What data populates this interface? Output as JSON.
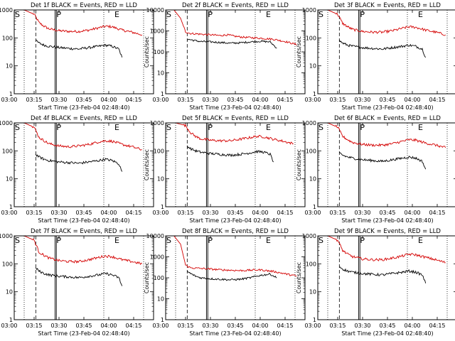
{
  "colors": {
    "events": "#000000",
    "lld": "#d40000",
    "axes": "#000000",
    "background": "#ffffff"
  },
  "chart_data": {
    "type": "line",
    "grid": false,
    "xlim": [
      "03:03",
      "04:27"
    ],
    "ylim": [
      1,
      1000
    ],
    "yscale": "log",
    "xticks": [
      "03:00",
      "03:15",
      "03:30",
      "03:45",
      "04:00",
      "04:15"
    ],
    "yticks": [
      "1",
      "10",
      "100",
      "1000"
    ],
    "ylabel": "Counts/sec",
    "xlabel": "Start Time (23-Feb-04 02:48:40)",
    "markers": [
      {
        "label": "S",
        "time": "03:03"
      },
      {
        "label": "P",
        "time": "03:28"
      },
      {
        "label": "E",
        "time": "04:03"
      }
    ],
    "panels": [
      {
        "title": "Det 1f BLACK = Events, RED = LLD",
        "ylim": [
          1,
          1000
        ],
        "yticks": [
          "1",
          "10",
          "100",
          "1000"
        ],
        "series": [
          {
            "name": "RED",
            "color": "#d40000",
            "x": [
              "03:03",
              "03:09",
              "03:15",
              "03:18",
              "03:21",
              "03:24",
              "03:30",
              "03:36",
              "03:42",
              "03:48",
              "03:54",
              "03:58",
              "04:02",
              "04:08",
              "04:14",
              "04:20"
            ],
            "values": [
              1000,
              1000,
              700,
              350,
              260,
              210,
              180,
              170,
              170,
              190,
              230,
              260,
              250,
              190,
              160,
              130
            ]
          },
          {
            "name": "BLACK",
            "color": "#000000",
            "x": [
              "03:16",
              "03:18",
              "03:21",
              "03:24",
              "03:30",
              "03:36",
              "03:42",
              "03:48",
              "03:54",
              "03:58",
              "04:02",
              "04:06",
              "04:08"
            ],
            "values": [
              80,
              65,
              55,
              50,
              45,
              42,
              40,
              45,
              50,
              55,
              50,
              40,
              20
            ]
          }
        ]
      },
      {
        "title": "Det 2f BLACK = Events, RED = LLD",
        "ylim": [
          1,
          10000
        ],
        "yticks": [
          "1",
          "10",
          "100",
          "1000",
          "10000"
        ],
        "series": [
          {
            "name": "RED",
            "color": "#d40000",
            "x": [
              "03:03",
              "03:08",
              "03:12",
              "03:15",
              "03:18",
              "03:24",
              "03:30",
              "03:36",
              "03:40",
              "03:45",
              "03:50",
              "04:00",
              "04:08",
              "04:16",
              "04:22"
            ],
            "values": [
              10000,
              10000,
              4000,
              900,
              750,
              700,
              650,
              600,
              650,
              550,
              500,
              450,
              400,
              300,
              220
            ]
          },
          {
            "name": "BLACK",
            "color": "#000000",
            "x": [
              "03:16",
              "03:18",
              "03:21",
              "03:24",
              "03:30",
              "03:36",
              "03:42",
              "03:48",
              "03:54",
              "04:00",
              "04:06",
              "04:10"
            ],
            "values": [
              400,
              380,
              340,
              310,
              300,
              280,
              260,
              270,
              300,
              320,
              300,
              150
            ]
          }
        ]
      },
      {
        "title": "Det 3f BLACK = Events, RED = LLD",
        "ylim": [
          1,
          1000
        ],
        "yticks": [
          "1",
          "10",
          "100",
          "1000"
        ],
        "series": [
          {
            "name": "RED",
            "color": "#d40000",
            "x": [
              "03:03",
              "03:09",
              "03:15",
              "03:18",
              "03:21",
              "03:24",
              "03:30",
              "03:36",
              "03:42",
              "03:48",
              "03:54",
              "03:58",
              "04:02",
              "04:08",
              "04:14",
              "04:20"
            ],
            "values": [
              1000,
              1000,
              700,
              330,
              250,
              200,
              170,
              160,
              160,
              180,
              220,
              250,
              240,
              190,
              160,
              130
            ]
          },
          {
            "name": "BLACK",
            "color": "#000000",
            "x": [
              "03:16",
              "03:18",
              "03:21",
              "03:24",
              "03:30",
              "03:36",
              "03:42",
              "03:48",
              "03:54",
              "03:58",
              "04:02",
              "04:06",
              "04:08"
            ],
            "values": [
              80,
              65,
              55,
              50,
              45,
              42,
              40,
              45,
              50,
              55,
              50,
              40,
              20
            ]
          }
        ]
      },
      {
        "title": "Det 4f BLACK = Events, RED = LLD",
        "ylim": [
          1,
          1000
        ],
        "yticks": [
          "1",
          "10",
          "100",
          "1000"
        ],
        "series": [
          {
            "name": "RED",
            "color": "#d40000",
            "x": [
              "03:03",
              "03:09",
              "03:15",
              "03:18",
              "03:21",
              "03:24",
              "03:30",
              "03:36",
              "03:42",
              "03:48",
              "03:54",
              "03:58",
              "04:02",
              "04:08",
              "04:14",
              "04:20"
            ],
            "values": [
              1000,
              1000,
              700,
              300,
              230,
              180,
              150,
              140,
              150,
              170,
              210,
              230,
              220,
              170,
              140,
              110
            ]
          },
          {
            "name": "BLACK",
            "color": "#000000",
            "x": [
              "03:16",
              "03:18",
              "03:21",
              "03:24",
              "03:30",
              "03:36",
              "03:42",
              "03:48",
              "03:54",
              "03:58",
              "04:02",
              "04:06",
              "04:08"
            ],
            "values": [
              75,
              60,
              50,
              45,
              40,
              38,
              36,
              40,
              45,
              50,
              45,
              35,
              18
            ]
          }
        ]
      },
      {
        "title": "Det 5f BLACK = Events, RED = LLD",
        "ylim": [
          1,
          1000
        ],
        "yticks": [
          "1",
          "10",
          "100",
          "1000"
        ],
        "series": [
          {
            "name": "RED",
            "color": "#d40000",
            "x": [
              "03:03",
              "03:09",
              "03:15",
              "03:18",
              "03:21",
              "03:24",
              "03:30",
              "03:36",
              "03:42",
              "03:48",
              "03:54",
              "03:58",
              "04:02",
              "04:08",
              "04:14",
              "04:20"
            ],
            "values": [
              1000,
              1000,
              800,
              450,
              330,
              270,
              240,
              230,
              230,
              260,
              300,
              330,
              320,
              260,
              220,
              180
            ]
          },
          {
            "name": "BLACK",
            "color": "#000000",
            "x": [
              "03:16",
              "03:18",
              "03:21",
              "03:24",
              "03:30",
              "03:36",
              "03:42",
              "03:48",
              "03:54",
              "03:58",
              "04:02",
              "04:06",
              "04:08"
            ],
            "values": [
              150,
              120,
              100,
              90,
              80,
              75,
              70,
              75,
              85,
              95,
              90,
              75,
              40
            ]
          }
        ]
      },
      {
        "title": "Det 6f BLACK = Events, RED = LLD",
        "ylim": [
          1,
          1000
        ],
        "yticks": [
          "1",
          "10",
          "100",
          "1000"
        ],
        "series": [
          {
            "name": "RED",
            "color": "#d40000",
            "x": [
              "03:03",
              "03:09",
              "03:15",
              "03:18",
              "03:21",
              "03:24",
              "03:30",
              "03:36",
              "03:42",
              "03:48",
              "03:54",
              "03:58",
              "04:02",
              "04:08",
              "04:14",
              "04:20"
            ],
            "values": [
              1000,
              1000,
              700,
              330,
              250,
              200,
              170,
              160,
              160,
              180,
              220,
              250,
              240,
              190,
              160,
              130
            ]
          },
          {
            "name": "BLACK",
            "color": "#000000",
            "x": [
              "03:16",
              "03:18",
              "03:21",
              "03:24",
              "03:30",
              "03:36",
              "03:42",
              "03:48",
              "03:54",
              "03:58",
              "04:02",
              "04:06",
              "04:08"
            ],
            "values": [
              85,
              70,
              60,
              55,
              48,
              45,
              42,
              48,
              55,
              60,
              55,
              42,
              22
            ]
          }
        ]
      },
      {
        "title": "Det 7f BLACK = Events, RED = LLD",
        "ylim": [
          1,
          1000
        ],
        "yticks": [
          "1",
          "10",
          "100",
          "1000"
        ],
        "series": [
          {
            "name": "RED",
            "color": "#d40000",
            "x": [
              "03:03",
              "03:09",
              "03:15",
              "03:18",
              "03:21",
              "03:24",
              "03:30",
              "03:36",
              "03:42",
              "03:48",
              "03:54",
              "03:58",
              "04:02",
              "04:08",
              "04:14",
              "04:20"
            ],
            "values": [
              1000,
              1000,
              700,
              260,
              200,
              160,
              130,
              120,
              120,
              140,
              170,
              190,
              180,
              140,
              120,
              100
            ]
          },
          {
            "name": "BLACK",
            "color": "#000000",
            "x": [
              "03:16",
              "03:18",
              "03:21",
              "03:24",
              "03:30",
              "03:36",
              "03:42",
              "03:48",
              "03:54",
              "03:58",
              "04:02",
              "04:06",
              "04:08"
            ],
            "values": [
              70,
              55,
              45,
              40,
              36,
              34,
              32,
              36,
              40,
              45,
              40,
              32,
              16
            ]
          }
        ]
      },
      {
        "title": "Det 8f BLACK = Events, RED = LLD",
        "ylim": [
          1,
          10000
        ],
        "yticks": [
          "1",
          "10",
          "100",
          "1000",
          "10000"
        ],
        "series": [
          {
            "name": "RED",
            "color": "#d40000",
            "x": [
              "03:03",
              "03:08",
              "03:12",
              "03:15",
              "03:18",
              "03:24",
              "03:30",
              "03:36",
              "03:42",
              "03:48",
              "03:54",
              "04:00",
              "04:08",
              "04:16",
              "04:22"
            ],
            "values": [
              10000,
              10000,
              4000,
              400,
              300,
              280,
              260,
              240,
              230,
              220,
              230,
              240,
              200,
              150,
              120
            ]
          },
          {
            "name": "BLACK",
            "color": "#000000",
            "x": [
              "03:16",
              "03:18",
              "03:21",
              "03:24",
              "03:30",
              "03:36",
              "03:42",
              "03:48",
              "03:54",
              "04:00",
              "04:06",
              "04:10"
            ],
            "values": [
              200,
              160,
              120,
              100,
              90,
              85,
              80,
              85,
              100,
              130,
              150,
              100
            ]
          }
        ]
      },
      {
        "title": "Det 9f BLACK = Events, RED = LLD",
        "ylim": [
          1,
          1000
        ],
        "yticks": [
          "1",
          "10",
          "100",
          "1000"
        ],
        "series": [
          {
            "name": "RED",
            "color": "#d40000",
            "x": [
              "03:03",
              "03:09",
              "03:15",
              "03:18",
              "03:21",
              "03:24",
              "03:30",
              "03:36",
              "03:42",
              "03:48",
              "03:54",
              "03:58",
              "04:02",
              "04:08",
              "04:14",
              "04:20"
            ],
            "values": [
              1000,
              1000,
              700,
              300,
              220,
              180,
              150,
              140,
              140,
              160,
              190,
              220,
              210,
              170,
              140,
              110
            ]
          },
          {
            "name": "BLACK",
            "color": "#000000",
            "x": [
              "03:16",
              "03:18",
              "03:21",
              "03:24",
              "03:30",
              "03:36",
              "03:42",
              "03:48",
              "03:54",
              "03:58",
              "04:02",
              "04:06",
              "04:08"
            ],
            "values": [
              80,
              65,
              55,
              50,
              45,
              42,
              40,
              45,
              50,
              55,
              50,
              40,
              20
            ]
          }
        ]
      }
    ]
  }
}
